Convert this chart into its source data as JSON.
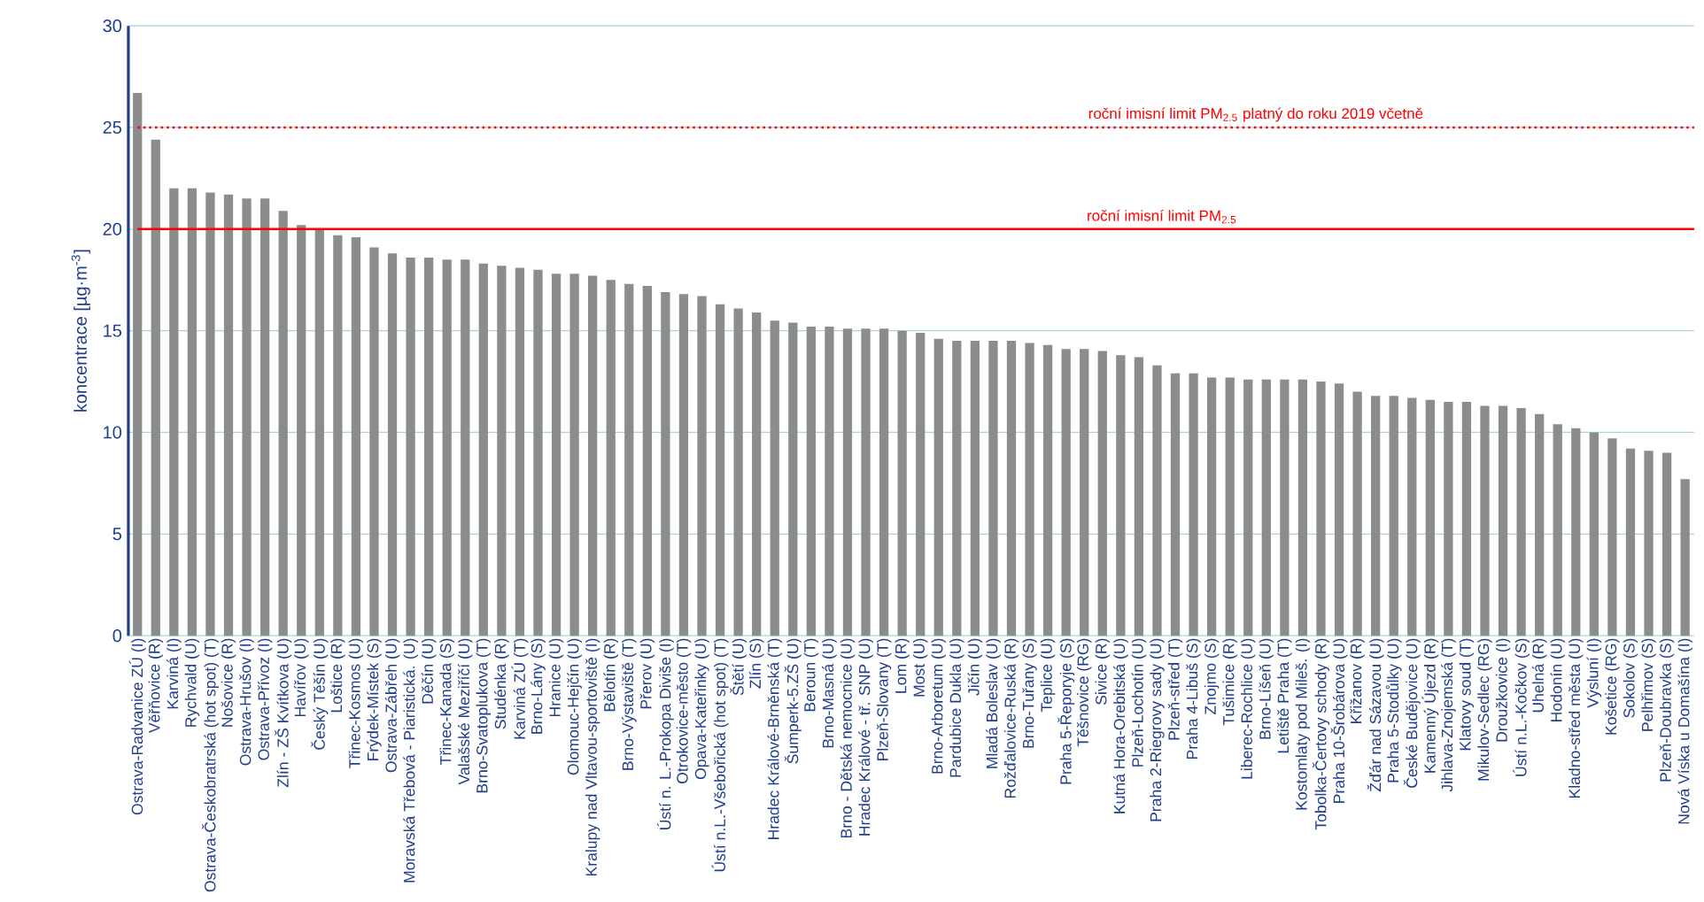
{
  "chart_data": {
    "type": "bar",
    "ylabel": "koncentrace [µg·m$^{-3}$]",
    "categories": [
      "Ostrava-Radvanice ZÚ (I)",
      "Věřňovice (R)",
      "Karviná (I)",
      "Rychvald (U)",
      "Ostrava-Českobratrská (hot spot) (T)",
      "Nošovice (R)",
      "Ostrava-Hrušov (I)",
      "Ostrava-Přívoz (I)",
      "Zlín - ZŠ Kvítkova (U)",
      "Havířov (U)",
      "Český Těšín (U)",
      "Loštice (R)",
      "Třinec-Kosmos (U)",
      "Frýdek-Místek (S)",
      "Ostrava-Zábřeh (U)",
      "Moravská Třebová - Piaristická. (U)",
      "Děčín (U)",
      "Třinec-Kanada (S)",
      "Valašské Meziříčí (U)",
      "Brno-Svatoplukova (T)",
      "Studénka (R)",
      "Karviná ZÚ (T)",
      "Brno-Lány (S)",
      "Hranice (U)",
      "Olomouc-Hejčín (U)",
      "Kralupy nad Vltavou-sportoviště (I)",
      "Bělotín (R)",
      "Brno-Výstaviště (T)",
      "Přerov (U)",
      "Ústí n. L.-Prokopa Diviše (I)",
      "Otrokovice-město (T)",
      "Opava-Kateřinky (U)",
      "Ústí n.L.-Všebořická (hot spot) (T)",
      "Štětí (U)",
      "Zlín (S)",
      "Hradec Králové-Brněnská (T)",
      "Šumperk-5.ZŠ (U)",
      "Beroun (T)",
      "Brno-Masná (U)",
      "Brno - Dětská nemocnice (U)",
      "Hradec Králové - tř. SNP (U)",
      "Plzeň-Slovany (T)",
      "Lom (R)",
      "Most (U)",
      "Brno-Arboretum (U)",
      "Pardubice Dukla (U)",
      "Jičín (U)",
      "Mladá Boleslav (U)",
      "Rožďalovice-Ruská (R)",
      "Brno-Tuřany (S)",
      "Teplice (U)",
      "Praha 5-Řeporyje (S)",
      "Těšnovice (RG)",
      "Sivice (R)",
      "Kutná Hora-Orebitská (U)",
      "Plzeň-Lochotín (U)",
      "Praha 2-Riegrovy sady (U)",
      "Plzeň-střed (T)",
      "Praha 4-Libuš (S)",
      "Znojmo (S)",
      "Tušimice (R)",
      "Liberec-Rochlice (U)",
      "Brno-Líšeň (U)",
      "Letiště Praha (T)",
      "Kostomlaty pod Mileš. (I)",
      "Tobolka-Čertovy schody (R)",
      "Praha 10-Šrobárova (U)",
      "Křižanov (R)",
      "Žďár nad Sázavou (U)",
      "Praha 5-Stodůlky (U)",
      "České Budějovice (U)",
      "Kamenný Újezd (R)",
      "Jihlava-Znojemská (T)",
      "Klatovy soud (T)",
      "Mikulov-Sedlec (RG)",
      "Droužkovice (I)",
      "Ústí n.L.-Kočkov (S)",
      "Uhelná (R)",
      "Hodonín (U)",
      "Kladno-střed města (U)",
      "Výsluní (I)",
      "Košetice (RG)",
      "Sokolov (S)",
      "Pelhřimov (S)",
      "Plzeň-Doubravka (S)",
      "Nová Víska u Domašína (I)"
    ],
    "values": [
      26.7,
      24.4,
      22.0,
      22.0,
      21.8,
      21.7,
      21.5,
      21.5,
      20.9,
      20.2,
      20.0,
      19.7,
      19.6,
      19.1,
      18.8,
      18.6,
      18.6,
      18.5,
      18.5,
      18.3,
      18.2,
      18.1,
      18.0,
      17.8,
      17.8,
      17.7,
      17.5,
      17.3,
      17.2,
      16.9,
      16.8,
      16.7,
      16.3,
      16.1,
      15.9,
      15.5,
      15.4,
      15.2,
      15.2,
      15.1,
      15.1,
      15.1,
      15.0,
      14.9,
      14.6,
      14.5,
      14.5,
      14.5,
      14.5,
      14.4,
      14.3,
      14.1,
      14.1,
      14.0,
      13.8,
      13.7,
      13.3,
      12.9,
      12.9,
      12.7,
      12.7,
      12.6,
      12.6,
      12.6,
      12.6,
      12.5,
      12.4,
      12.0,
      11.8,
      11.8,
      11.7,
      11.6,
      11.5,
      11.5,
      11.3,
      11.3,
      11.2,
      10.9,
      10.4,
      10.2,
      10.0,
      9.7,
      9.2,
      9.1,
      9.0,
      7.7
    ],
    "color": "#8c8c8c",
    "ylim": [
      0,
      30
    ],
    "yticks": [
      0,
      5,
      10,
      15,
      20,
      25,
      30
    ],
    "grid": "y",
    "ref_lines": [
      {
        "axis": "y",
        "value": 25,
        "label": "roční imisní limit PM$_{2.5}$ platný do roku 2019 včetně",
        "color": "#ff0000",
        "line_style": "dotted"
      },
      {
        "axis": "y",
        "value": 20,
        "label": "roční imisní limit PM$_{2.5}$",
        "color": "#ff0000",
        "line_style": "solid"
      }
    ]
  }
}
